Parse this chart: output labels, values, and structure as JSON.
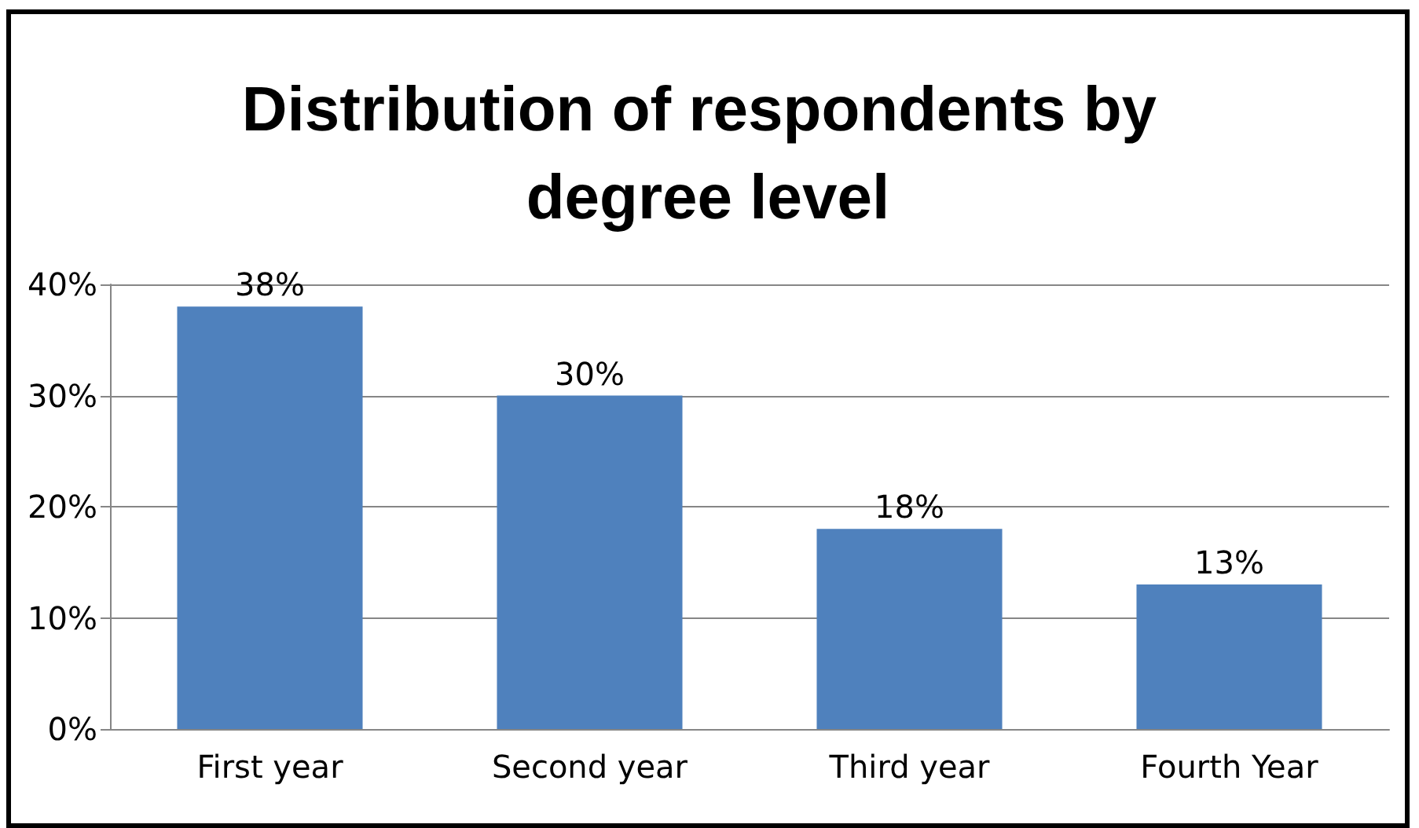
{
  "chart_data": {
    "type": "bar",
    "title": "Distribution of respondents by degree level",
    "categories": [
      "First year",
      "Second year",
      "Third year",
      "Fourth Year"
    ],
    "values": [
      38,
      30,
      18,
      13
    ],
    "color": "#4f81bd",
    "value_labels": [
      "38%",
      "30%",
      "18%",
      "13%"
    ],
    "ylim": [
      0,
      40
    ],
    "yticks": [
      {
        "value": 0,
        "label": "0%"
      },
      {
        "value": 10,
        "label": "10%"
      },
      {
        "value": 20,
        "label": "20%"
      },
      {
        "value": 30,
        "label": "30%"
      },
      {
        "value": 40,
        "label": "40%"
      }
    ],
    "grid": "y"
  }
}
